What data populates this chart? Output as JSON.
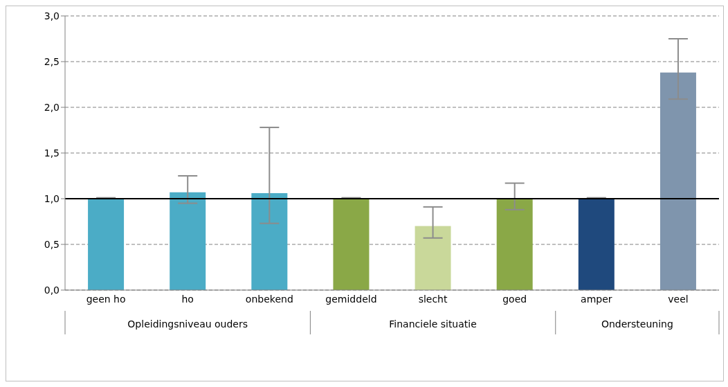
{
  "chart_data": {
    "type": "bar",
    "categories": [
      "geen ho",
      "ho",
      "onbekend",
      "gemiddeld",
      "slecht",
      "goed",
      "amper",
      "veel"
    ],
    "values": [
      1.0,
      1.07,
      1.06,
      1.0,
      0.7,
      1.0,
      1.0,
      2.38
    ],
    "colors": [
      "#4bacc6",
      "#4bacc6",
      "#4bacc6",
      "#8aa847",
      "#c9d89a",
      "#8aa847",
      "#1f497d",
      "#7f95ad"
    ],
    "errors": [
      [
        1.0,
        1.01
      ],
      [
        0.95,
        1.25
      ],
      [
        0.73,
        1.78
      ],
      [
        1.0,
        1.01
      ],
      [
        0.57,
        0.91
      ],
      [
        0.88,
        1.17
      ],
      [
        1.0,
        1.01
      ],
      [
        2.09,
        2.75
      ]
    ],
    "ylim": [
      0,
      3
    ],
    "yticks": [
      {
        "value": 0,
        "label": "0,0"
      },
      {
        "value": 0.5,
        "label": "0,5"
      },
      {
        "value": 1,
        "label": "1,0"
      },
      {
        "value": 1.5,
        "label": "1,5"
      },
      {
        "value": 2,
        "label": "2,0"
      },
      {
        "value": 2.5,
        "label": "2,5"
      },
      {
        "value": 3,
        "label": "3,0"
      }
    ],
    "grid": "y",
    "legend": false,
    "ref_lines": [
      {
        "axis": "y",
        "value": 1,
        "color": "#000000",
        "line_style": "solid"
      }
    ],
    "annotations": [
      "Opleidingsniveau ouders",
      "Financiele situatie",
      "Ondersteuning"
    ]
  }
}
